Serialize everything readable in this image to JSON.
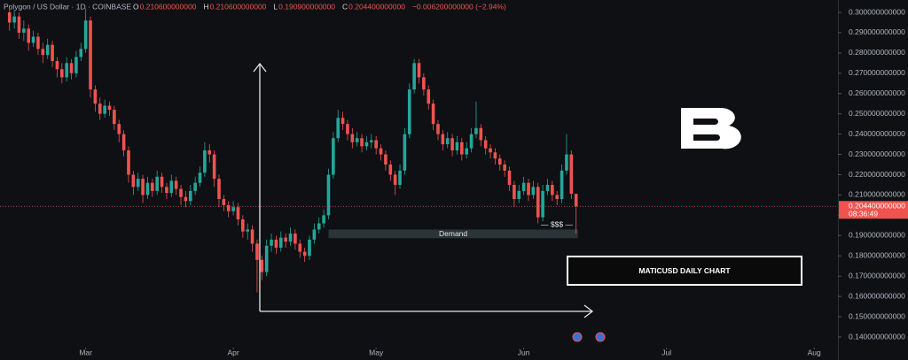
{
  "chart_data": {
    "type": "candlestick",
    "title": "Polygon / US Dollar · 1D · COINBASE",
    "legend_ohlc": [
      {
        "key": "O",
        "value": "0.210600000000"
      },
      {
        "key": "H",
        "value": "0.210600000000"
      },
      {
        "key": "L",
        "value": "0.190900000000"
      },
      {
        "key": "C",
        "value": "0.204400000000"
      }
    ],
    "change": "−0.006200000000 (−2.94%)",
    "up_color": "#26a69a",
    "down_color": "#ef5350",
    "grid": false,
    "open": [
      0.3,
      0.295,
      0.298,
      0.29,
      0.292,
      0.285,
      0.288,
      0.282,
      0.279,
      0.284,
      0.276,
      0.272,
      0.268,
      0.275,
      0.27,
      0.278,
      0.282,
      0.296,
      0.262,
      0.255,
      0.25,
      0.254,
      0.252,
      0.245,
      0.24,
      0.232,
      0.22,
      0.214,
      0.218,
      0.21,
      0.216,
      0.212,
      0.219,
      0.214,
      0.211,
      0.217,
      0.213,
      0.209,
      0.207,
      0.212,
      0.216,
      0.221,
      0.232,
      0.23,
      0.218,
      0.208,
      0.205,
      0.202,
      0.204,
      0.198,
      0.192,
      0.193,
      0.186,
      0.178,
      0.172,
      0.185,
      0.188,
      0.184,
      0.189,
      0.187,
      0.191,
      0.186,
      0.182,
      0.18,
      0.188,
      0.193,
      0.196,
      0.2,
      0.22,
      0.238,
      0.248,
      0.245,
      0.24,
      0.236,
      0.238,
      0.234,
      0.236,
      0.237,
      0.233,
      0.23,
      0.225,
      0.22,
      0.215,
      0.222,
      0.24,
      0.262,
      0.275,
      0.268,
      0.262,
      0.255,
      0.245,
      0.24,
      0.235,
      0.238,
      0.232,
      0.236,
      0.23,
      0.233,
      0.24,
      0.243,
      0.237,
      0.233,
      0.231,
      0.228,
      0.225,
      0.222,
      0.215,
      0.208,
      0.212,
      0.216,
      0.21,
      0.214,
      0.199,
      0.212,
      0.215,
      0.21,
      0.208,
      0.222,
      0.23,
      0.2106
    ],
    "high": [
      0.302,
      0.301,
      0.3,
      0.296,
      0.294,
      0.291,
      0.29,
      0.285,
      0.287,
      0.286,
      0.278,
      0.275,
      0.278,
      0.277,
      0.281,
      0.285,
      0.302,
      0.298,
      0.264,
      0.258,
      0.257,
      0.256,
      0.254,
      0.247,
      0.242,
      0.234,
      0.222,
      0.221,
      0.22,
      0.219,
      0.218,
      0.222,
      0.221,
      0.216,
      0.22,
      0.219,
      0.215,
      0.212,
      0.215,
      0.219,
      0.224,
      0.236,
      0.235,
      0.232,
      0.22,
      0.21,
      0.207,
      0.207,
      0.206,
      0.2,
      0.196,
      0.195,
      0.188,
      0.18,
      0.188,
      0.191,
      0.19,
      0.192,
      0.191,
      0.194,
      0.193,
      0.188,
      0.184,
      0.19,
      0.196,
      0.199,
      0.203,
      0.223,
      0.241,
      0.252,
      0.251,
      0.247,
      0.243,
      0.241,
      0.24,
      0.239,
      0.24,
      0.239,
      0.235,
      0.232,
      0.227,
      0.222,
      0.225,
      0.243,
      0.265,
      0.277,
      0.277,
      0.27,
      0.264,
      0.257,
      0.247,
      0.242,
      0.241,
      0.24,
      0.239,
      0.238,
      0.236,
      0.243,
      0.256,
      0.245,
      0.239,
      0.235,
      0.233,
      0.23,
      0.227,
      0.224,
      0.217,
      0.215,
      0.219,
      0.218,
      0.217,
      0.216,
      0.215,
      0.218,
      0.217,
      0.212,
      0.225,
      0.24,
      0.232,
      0.2106
    ],
    "low": [
      0.291,
      0.292,
      0.287,
      0.286,
      0.281,
      0.283,
      0.279,
      0.275,
      0.277,
      0.273,
      0.268,
      0.265,
      0.266,
      0.267,
      0.268,
      0.276,
      0.28,
      0.258,
      0.251,
      0.247,
      0.248,
      0.249,
      0.242,
      0.236,
      0.229,
      0.216,
      0.21,
      0.212,
      0.206,
      0.208,
      0.209,
      0.21,
      0.211,
      0.208,
      0.209,
      0.21,
      0.205,
      0.204,
      0.205,
      0.21,
      0.214,
      0.219,
      0.226,
      0.214,
      0.204,
      0.202,
      0.199,
      0.2,
      0.195,
      0.189,
      0.188,
      0.182,
      0.162,
      0.168,
      0.17,
      0.182,
      0.181,
      0.182,
      0.184,
      0.185,
      0.183,
      0.179,
      0.177,
      0.178,
      0.186,
      0.191,
      0.194,
      0.198,
      0.218,
      0.236,
      0.242,
      0.237,
      0.233,
      0.234,
      0.231,
      0.232,
      0.233,
      0.23,
      0.227,
      0.222,
      0.217,
      0.21,
      0.213,
      0.22,
      0.238,
      0.26,
      0.265,
      0.259,
      0.252,
      0.242,
      0.237,
      0.232,
      0.233,
      0.229,
      0.23,
      0.227,
      0.228,
      0.231,
      0.238,
      0.234,
      0.23,
      0.228,
      0.225,
      0.222,
      0.219,
      0.212,
      0.204,
      0.206,
      0.21,
      0.207,
      0.208,
      0.196,
      0.197,
      0.21,
      0.207,
      0.205,
      0.206,
      0.22,
      0.208,
      0.1909
    ],
    "close": [
      0.295,
      0.298,
      0.29,
      0.292,
      0.285,
      0.288,
      0.282,
      0.279,
      0.284,
      0.276,
      0.272,
      0.268,
      0.275,
      0.27,
      0.278,
      0.282,
      0.296,
      0.262,
      0.255,
      0.25,
      0.254,
      0.252,
      0.245,
      0.24,
      0.232,
      0.22,
      0.214,
      0.218,
      0.21,
      0.216,
      0.212,
      0.219,
      0.214,
      0.211,
      0.217,
      0.213,
      0.209,
      0.207,
      0.212,
      0.216,
      0.221,
      0.232,
      0.23,
      0.218,
      0.208,
      0.205,
      0.202,
      0.204,
      0.198,
      0.192,
      0.193,
      0.186,
      0.178,
      0.172,
      0.185,
      0.188,
      0.184,
      0.189,
      0.187,
      0.191,
      0.186,
      0.182,
      0.18,
      0.188,
      0.193,
      0.196,
      0.2,
      0.22,
      0.238,
      0.248,
      0.245,
      0.24,
      0.236,
      0.238,
      0.234,
      0.236,
      0.237,
      0.233,
      0.23,
      0.225,
      0.22,
      0.215,
      0.222,
      0.24,
      0.262,
      0.275,
      0.268,
      0.262,
      0.255,
      0.245,
      0.24,
      0.235,
      0.238,
      0.232,
      0.236,
      0.23,
      0.233,
      0.24,
      0.243,
      0.237,
      0.233,
      0.231,
      0.228,
      0.225,
      0.222,
      0.215,
      0.208,
      0.212,
      0.216,
      0.21,
      0.214,
      0.199,
      0.212,
      0.215,
      0.21,
      0.208,
      0.222,
      0.23,
      0.2106,
      0.2044
    ],
    "xlim": [
      -2,
      174
    ],
    "xticks": [
      {
        "value": 16,
        "label": "Mar"
      },
      {
        "value": 47,
        "label": "Apr"
      },
      {
        "value": 77,
        "label": "May"
      },
      {
        "value": 108,
        "label": "Jun"
      },
      {
        "value": 138,
        "label": "Jul"
      },
      {
        "value": 169,
        "label": "Aug"
      }
    ],
    "ylim": [
      0.14,
      0.3
    ],
    "yticks": [
      {
        "value": 0.14,
        "label": "0.140000000000"
      },
      {
        "value": 0.15,
        "label": "0.150000000000"
      },
      {
        "value": 0.16,
        "label": "0.160000000000"
      },
      {
        "value": 0.17,
        "label": "0.170000000000"
      },
      {
        "value": 0.18,
        "label": "0.180000000000"
      },
      {
        "value": 0.19,
        "label": "0.190000000000"
      },
      {
        "value": 0.2,
        "label": "0.200000000000"
      },
      {
        "value": 0.21,
        "label": "0.210000000000"
      },
      {
        "value": 0.22,
        "label": "0.220000000000"
      },
      {
        "value": 0.23,
        "label": "0.230000000000"
      },
      {
        "value": 0.24,
        "label": "0.240000000000"
      },
      {
        "value": 0.25,
        "label": "0.250000000000"
      },
      {
        "value": 0.26,
        "label": "0.260000000000"
      },
      {
        "value": 0.27,
        "label": "0.270000000000"
      },
      {
        "value": 0.28,
        "label": "0.280000000000"
      },
      {
        "value": 0.29,
        "label": "0.290000000000"
      },
      {
        "value": 0.3,
        "label": "0.300000000000"
      }
    ],
    "last_price": {
      "value": 0.2044,
      "label": "0.204400000000",
      "countdown": "08:36:49"
    },
    "demand_zone": {
      "label": "Demand",
      "low": 0.1887,
      "high": 0.193,
      "start": 67,
      "end": 119
    },
    "liquidity_label": "— $$$ —",
    "chart_label": "MATICUSD DAILY CHART"
  }
}
